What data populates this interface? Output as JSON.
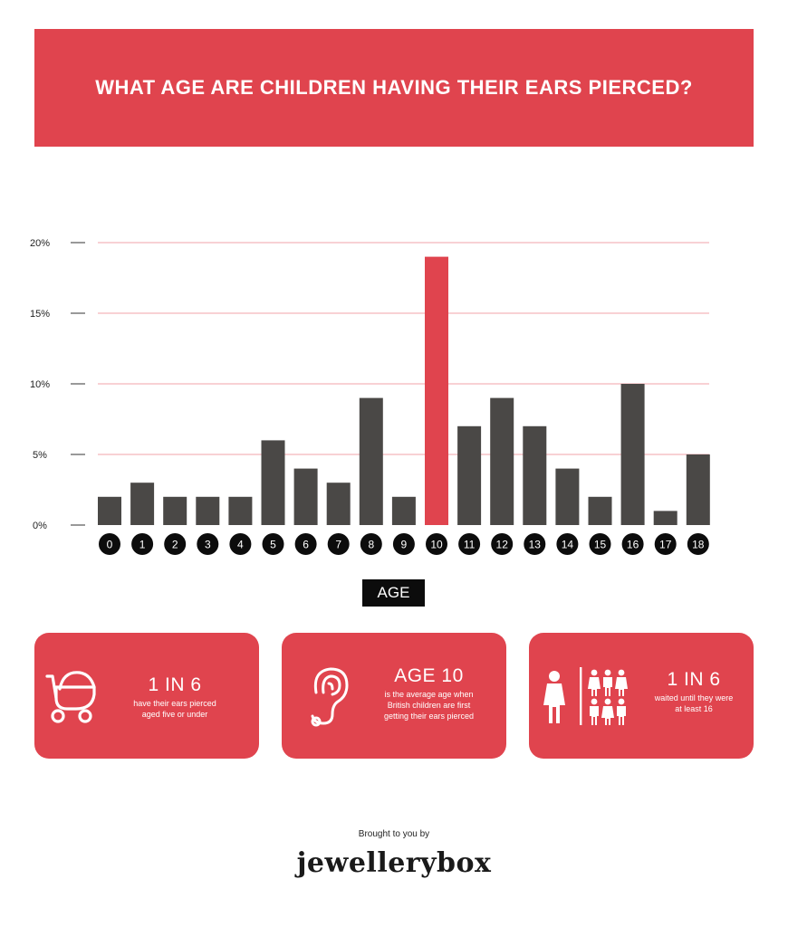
{
  "header": {
    "title": "WHAT AGE ARE CHILDREN HAVING THEIR EARS PIERCED?"
  },
  "colors": {
    "accent": "#e0444e",
    "bar": "#4a4846",
    "highlight_bar": "#e0444e",
    "grid": "#f0a3a8",
    "dark": "#0c0c0c"
  },
  "chart_data": {
    "type": "bar",
    "xlabel": "AGE",
    "ylabel": "",
    "ylim": [
      0,
      20
    ],
    "yticks": [
      "0%",
      "5%",
      "10%",
      "15%",
      "20%"
    ],
    "categories": [
      "0",
      "1",
      "2",
      "3",
      "4",
      "5",
      "6",
      "7",
      "8",
      "9",
      "10",
      "11",
      "12",
      "13",
      "14",
      "15",
      "16",
      "17",
      "18"
    ],
    "values": [
      2,
      3,
      2,
      2,
      2,
      6,
      4,
      3,
      9,
      2,
      19,
      7,
      9,
      7,
      4,
      2,
      10,
      1,
      5
    ],
    "highlight_category": "10",
    "grid": true
  },
  "cards": [
    {
      "icon": "pram-icon",
      "stat": "1 IN 6",
      "lines": [
        "have their ears pierced",
        "aged five or under"
      ]
    },
    {
      "icon": "ear-icon",
      "stat": "AGE 10",
      "lines": [
        "is the average age when",
        "British children are first",
        "getting their ears pierced"
      ]
    },
    {
      "icon": "people-icon",
      "stat": "1 IN 6",
      "lines": [
        "waited until they were",
        "at least 16"
      ]
    }
  ],
  "footer": {
    "brought_by": "Brought to you by",
    "brand": "jewellerybox"
  }
}
